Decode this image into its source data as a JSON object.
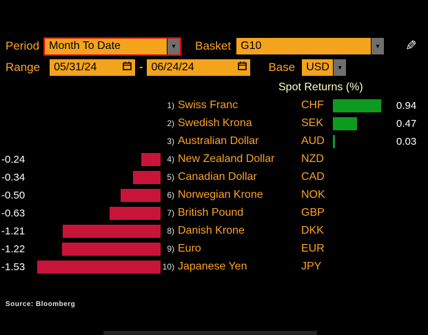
{
  "header": {
    "period_label": "Period",
    "period_value": "Month To Date",
    "basket_label": "Basket",
    "basket_value": "G10",
    "range_label": "Range",
    "range_start": "05/31/24",
    "range_separator": "-",
    "range_end": "06/24/24",
    "base_label": "Base",
    "base_value": "USD"
  },
  "colors": {
    "amber": "#ffa224",
    "field_bg": "#f4a31c",
    "highlight_border": "#e00000",
    "positive": "#0c9b1f",
    "negative": "#c9143a"
  },
  "chart_data": {
    "type": "bar",
    "orientation": "horizontal",
    "title": "Spot Returns (%)",
    "categories": [
      "Swiss Franc",
      "Swedish Krona",
      "Australian Dollar",
      "New Zealand Dollar",
      "Canadian Dollar",
      "Norwegian Krone",
      "British Pound",
      "Danish Krone",
      "Euro",
      "Japanese Yen"
    ],
    "codes": [
      "CHF",
      "SEK",
      "AUD",
      "NZD",
      "CAD",
      "NOK",
      "GBP",
      "DKK",
      "EUR",
      "JPY"
    ],
    "ranks": [
      "1)",
      "2)",
      "3)",
      "4)",
      "5)",
      "6)",
      "7)",
      "8)",
      "9)",
      "10)"
    ],
    "values": [
      0.94,
      0.47,
      0.03,
      -0.24,
      -0.34,
      -0.5,
      -0.63,
      -1.21,
      -1.22,
      -1.53
    ],
    "labels": [
      "0.94",
      "0.47",
      "0.03",
      "-0.24",
      "-0.34",
      "-0.50",
      "-0.63",
      "-1.21",
      "-1.22",
      "-1.53"
    ],
    "positive_color": "#0c9b1f",
    "negative_color": "#c9143a",
    "source": "Source: Bloomberg"
  }
}
